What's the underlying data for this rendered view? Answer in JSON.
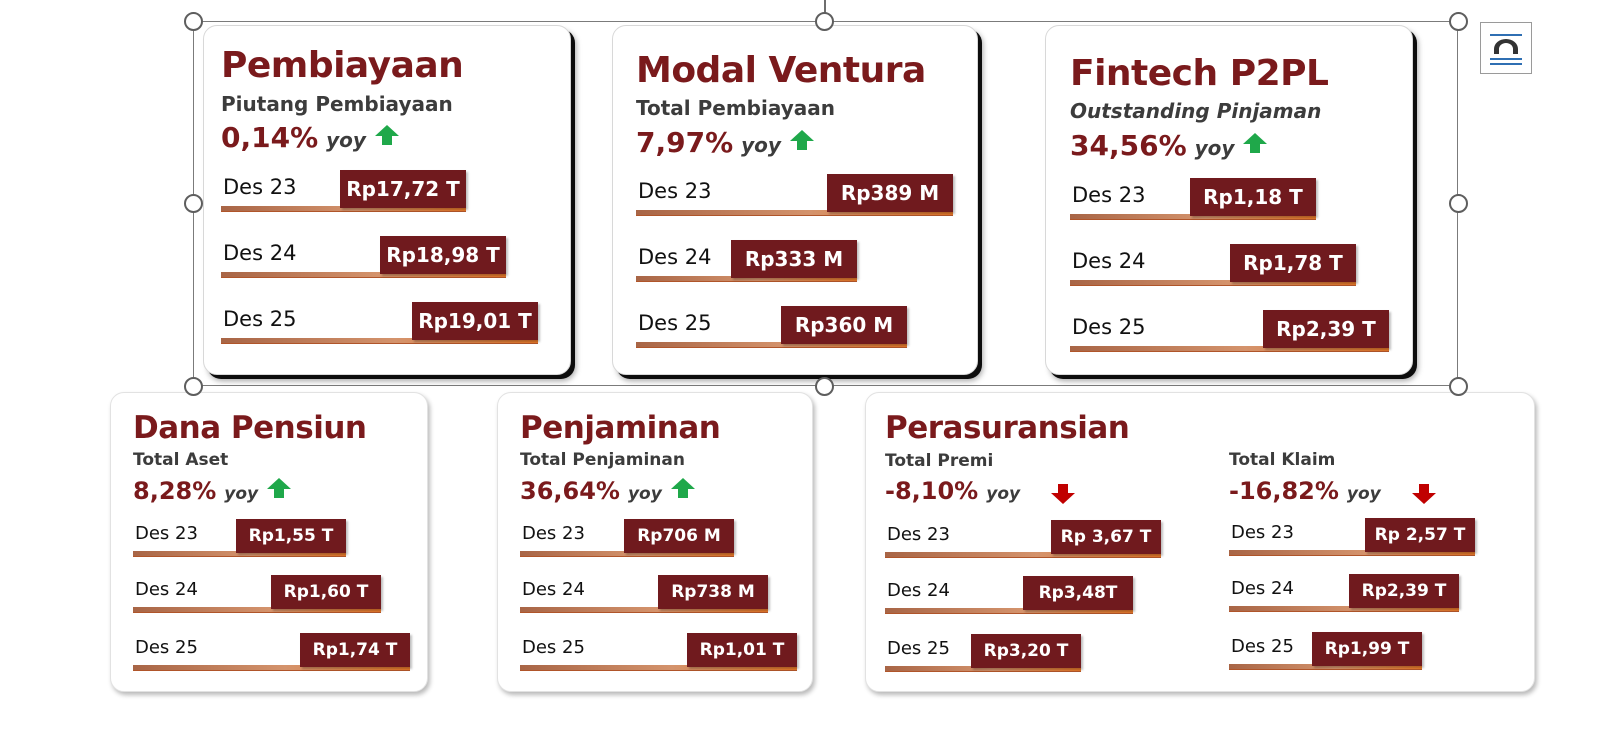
{
  "colors": {
    "title": "#7a1a1c",
    "value_box": "#701a1e",
    "up_arrow": "#1fa84a",
    "down_arrow": "#c00000",
    "bar_gradient_end": "#e97a2a"
  },
  "toolbar": {
    "layout_options_icon": "layout-options-icon"
  },
  "chart_data": [
    {
      "type": "bar",
      "title": "Pembiayaan",
      "subtitle": "Piutang Pembiayaan",
      "growth": "0,14%",
      "growth_unit": "yoy",
      "direction": "up",
      "categories": [
        "Des 23",
        "Des 24",
        "Des 25"
      ],
      "values": [
        17.72,
        18.98,
        19.01
      ],
      "value_labels": [
        "Rp17,72 T",
        "Rp18,98 T",
        "Rp19,01 T"
      ]
    },
    {
      "type": "bar",
      "title": "Modal Ventura",
      "subtitle": "Total Pembiayaan",
      "growth": "7,97%",
      "growth_unit": "yoy",
      "direction": "up",
      "categories": [
        "Des 23",
        "Des 24",
        "Des 25"
      ],
      "values": [
        389,
        333,
        360
      ],
      "value_labels": [
        "Rp389 M",
        "Rp333 M",
        "Rp360 M"
      ]
    },
    {
      "type": "bar",
      "title": "Fintech P2PL",
      "subtitle": "Outstanding Pinjaman",
      "growth": "34,56%",
      "growth_unit": "yoy",
      "direction": "up",
      "categories": [
        "Des 23",
        "Des 24",
        "Des 25"
      ],
      "values": [
        1.18,
        1.78,
        2.39
      ],
      "value_labels": [
        "Rp1,18 T",
        "Rp1,78 T",
        "Rp2,39 T"
      ]
    },
    {
      "type": "bar",
      "title": "Dana Pensiun",
      "subtitle": "Total Aset",
      "growth": "8,28%",
      "growth_unit": "yoy",
      "direction": "up",
      "categories": [
        "Des 23",
        "Des 24",
        "Des 25"
      ],
      "values": [
        1.55,
        1.6,
        1.74
      ],
      "value_labels": [
        "Rp1,55 T",
        "Rp1,60 T",
        "Rp1,74 T"
      ]
    },
    {
      "type": "bar",
      "title": "Penjaminan",
      "subtitle": "Total Penjaminan",
      "growth": "36,64%",
      "growth_unit": "yoy",
      "direction": "up",
      "categories": [
        "Des 23",
        "Des 24",
        "Des 25"
      ],
      "values": [
        0.706,
        0.738,
        1.01
      ],
      "value_labels": [
        "Rp706 M",
        "Rp738 M",
        "Rp1,01 T"
      ]
    },
    {
      "type": "bar",
      "title": "Perasuransian",
      "subtitle": "Total Premi",
      "growth": "-8,10%",
      "growth_unit": "yoy",
      "direction": "down",
      "categories": [
        "Des 23",
        "Des 24",
        "Des 25"
      ],
      "values": [
        3.67,
        3.48,
        3.2
      ],
      "value_labels": [
        "Rp 3,67 T",
        "Rp3,48T",
        "Rp3,20 T"
      ]
    },
    {
      "type": "bar",
      "title": "",
      "subtitle": "Total Klaim",
      "growth": "-16,82%",
      "growth_unit": "yoy",
      "direction": "down",
      "categories": [
        "Des 23",
        "Des 24",
        "Des 25"
      ],
      "values": [
        2.57,
        2.39,
        1.99
      ],
      "value_labels": [
        "Rp 2,57 T",
        "Rp2,39 T",
        "Rp1,99 T"
      ]
    }
  ]
}
